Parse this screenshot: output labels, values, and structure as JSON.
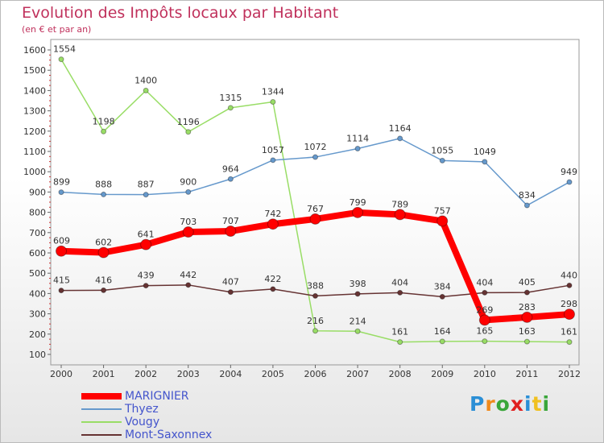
{
  "chart_data": {
    "type": "line",
    "title": "Evolution des Impôts locaux par Habitant",
    "subtitle": "(en € et par an)",
    "x": [
      "2000",
      "2001",
      "2002",
      "2003",
      "2004",
      "2005",
      "2006",
      "2007",
      "2008",
      "2009",
      "2010",
      "2011",
      "2012"
    ],
    "ylim": [
      100,
      1600
    ],
    "yticks": [
      100,
      200,
      300,
      400,
      500,
      600,
      700,
      800,
      900,
      1000,
      1100,
      1200,
      1300,
      1400,
      1500,
      1600
    ],
    "grid": false,
    "legend_position": "bottom-left",
    "series": [
      {
        "name": "MARIGNIER",
        "color": "#ff0000",
        "values": [
          609,
          602,
          641,
          703,
          707,
          742,
          767,
          799,
          789,
          757,
          269,
          283,
          298
        ]
      },
      {
        "name": "Thyez",
        "color": "#6699cc",
        "values": [
          899,
          888,
          887,
          900,
          964,
          1057,
          1072,
          1114,
          1164,
          1055,
          1049,
          834,
          949
        ]
      },
      {
        "name": "Vougy",
        "color": "#99dd66",
        "values": [
          1554,
          1198,
          1400,
          1196,
          1315,
          1344,
          216,
          214,
          161,
          164,
          165,
          163,
          161
        ]
      },
      {
        "name": "Mont-Saxonnex",
        "color": "#663333",
        "values": [
          415,
          416,
          439,
          442,
          407,
          422,
          388,
          398,
          404,
          384,
          404,
          405,
          440
        ]
      }
    ]
  },
  "logo": {
    "letters": [
      {
        "char": "P",
        "color": "#2b8fd6"
      },
      {
        "char": "r",
        "color": "#f08a1c"
      },
      {
        "char": "o",
        "color": "#3aa63a"
      },
      {
        "char": "x",
        "color": "#e02020"
      },
      {
        "char": "i",
        "color": "#2b8fd6"
      },
      {
        "char": "t",
        "color": "#f0c020"
      },
      {
        "char": "i",
        "color": "#3aa63a"
      }
    ]
  }
}
